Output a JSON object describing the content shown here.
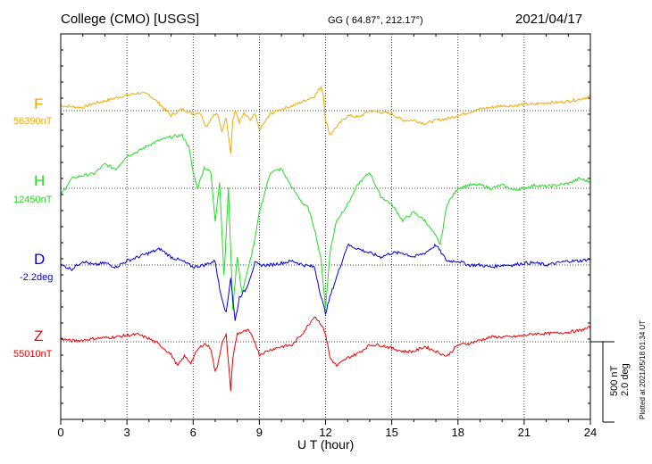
{
  "header": {
    "station": "College (CMO)  [USGS]",
    "coords": "GG ( 64.87°, 212.17°)",
    "date": "2021/04/17"
  },
  "footer": {
    "plotted": "Plotted at 2021/05/18 01:34  UT"
  },
  "colors": {
    "F": "#f5a800",
    "H": "#22dd22",
    "D": "#0000dd",
    "Z": "#ee0000",
    "grid": "#000000"
  },
  "chart_data": {
    "type": "line",
    "xlabel": "U T (hour)",
    "xlim": [
      0,
      24
    ],
    "xticks": [
      "0",
      "3",
      "6",
      "9",
      "12",
      "15",
      "18",
      "21",
      "24"
    ],
    "scale": {
      "nt_label": "500 nT",
      "deg_label": "2.0 deg",
      "nT_per_bar": 500,
      "deg_per_bar": 2.0
    },
    "series": [
      {
        "name": "F",
        "baseline_label": "56390nT",
        "unit": "nT",
        "x": [
          0,
          0.5,
          1,
          1.5,
          2,
          2.5,
          3,
          3.5,
          4,
          4.5,
          5,
          5.5,
          6,
          6.3,
          6.6,
          6.9,
          7.1,
          7.3,
          7.5,
          7.7,
          7.8,
          7.9,
          8.1,
          8.3,
          8.6,
          8.8,
          9,
          9.5,
          10,
          10.5,
          11,
          11.5,
          11.8,
          11.9,
          12,
          12.2,
          12.5,
          13,
          13.5,
          14,
          14.5,
          15,
          15.5,
          16,
          16.5,
          17,
          17.5,
          18,
          18.5,
          19,
          19.5,
          20,
          20.5,
          21,
          21.5,
          22,
          22.5,
          23,
          23.5,
          24
        ],
        "values": [
          30,
          25,
          20,
          45,
          60,
          80,
          95,
          110,
          100,
          40,
          -30,
          10,
          -20,
          -10,
          -100,
          -30,
          -20,
          -130,
          -40,
          -260,
          -60,
          0,
          -70,
          -20,
          -60,
          -20,
          -120,
          -20,
          10,
          30,
          60,
          90,
          150,
          100,
          -60,
          -150,
          -100,
          -30,
          -40,
          0,
          -10,
          -20,
          -60,
          -60,
          -80,
          -60,
          -50,
          -30,
          -10,
          10,
          20,
          30,
          30,
          40,
          40,
          50,
          50,
          60,
          70,
          90
        ]
      },
      {
        "name": "H",
        "baseline_label": "12450nT",
        "unit": "nT",
        "x": [
          0,
          0.5,
          1,
          1.5,
          2,
          2.5,
          3,
          3.5,
          4,
          4.5,
          5,
          5.5,
          5.8,
          6,
          6.2,
          6.5,
          6.8,
          7,
          7.2,
          7.4,
          7.6,
          7.8,
          8,
          8.2,
          8.5,
          8.8,
          9,
          9.5,
          10,
          10.5,
          11,
          11.2,
          11.5,
          11.8,
          12,
          12.2,
          12.5,
          13,
          13.5,
          14,
          14.5,
          15,
          15.5,
          16,
          16.5,
          17,
          17.2,
          17.5,
          18,
          18.5,
          19,
          19.5,
          20,
          20.5,
          21,
          21.5,
          22,
          22.5,
          23,
          23.5,
          24
        ],
        "values": [
          -40,
          60,
          80,
          90,
          150,
          120,
          200,
          230,
          270,
          300,
          320,
          330,
          260,
          100,
          0,
          130,
          100,
          -200,
          40,
          -550,
          0,
          -750,
          -420,
          -650,
          -500,
          -320,
          -150,
          100,
          120,
          0,
          -100,
          -120,
          -250,
          -450,
          -750,
          -400,
          -200,
          -100,
          30,
          100,
          -50,
          -100,
          -200,
          -150,
          -200,
          -300,
          -350,
          -100,
          0,
          20,
          20,
          0,
          20,
          -10,
          0,
          20,
          10,
          20,
          30,
          60,
          40
        ]
      },
      {
        "name": "D",
        "baseline_label": "-2.2deg",
        "unit": "deg",
        "x": [
          0,
          0.5,
          1,
          1.5,
          2,
          2.5,
          3,
          3.5,
          4,
          4.5,
          5,
          5.5,
          6,
          6.5,
          7,
          7.2,
          7.5,
          7.7,
          7.9,
          8.1,
          8.4,
          8.8,
          9,
          9.5,
          10,
          10.5,
          11,
          11.5,
          11.8,
          12,
          12.2,
          12.5,
          13,
          13.5,
          14,
          14.5,
          15,
          15.5,
          16,
          16.5,
          17,
          17.5,
          18,
          18.5,
          19,
          19.5,
          20,
          20.5,
          21,
          21.5,
          22,
          22.5,
          23,
          23.5,
          24
        ],
        "values": [
          0,
          -0.1,
          0.1,
          0,
          0.05,
          -0.05,
          0.1,
          0.2,
          0.3,
          0.4,
          0.2,
          0.1,
          -0.05,
          0,
          0.1,
          -0.6,
          -1.2,
          -0.3,
          -1.4,
          -0.8,
          -0.6,
          0.05,
          0,
          0,
          0.05,
          0.1,
          0,
          -0.05,
          -0.8,
          -1.2,
          -0.8,
          -0.3,
          0.5,
          0.4,
          0.3,
          0.2,
          0.3,
          0.3,
          0.2,
          0.3,
          0.5,
          0.1,
          0.1,
          0,
          0,
          -0.05,
          0,
          0,
          0.05,
          0.05,
          0,
          0.05,
          0.1,
          0.1,
          0.15
        ]
      },
      {
        "name": "Z",
        "baseline_label": "55010nT",
        "unit": "nT",
        "x": [
          0,
          0.5,
          1,
          1.5,
          2,
          2.5,
          3,
          3.5,
          4,
          4.5,
          5,
          5.3,
          5.6,
          5.9,
          6.2,
          6.5,
          6.8,
          7,
          7.1,
          7.3,
          7.5,
          7.7,
          7.8,
          8,
          8.2,
          8.5,
          8.8,
          9,
          9.5,
          10,
          10.5,
          11,
          11.5,
          11.8,
          12,
          12.2,
          12.5,
          13,
          13.5,
          14,
          14.5,
          15,
          15.5,
          16,
          16.5,
          17,
          17.5,
          18,
          18.5,
          19,
          19.5,
          20,
          20.5,
          21,
          21.5,
          22,
          22.5,
          23,
          23.5,
          24
        ],
        "values": [
          20,
          5,
          10,
          20,
          25,
          30,
          40,
          45,
          20,
          -20,
          -80,
          -150,
          -90,
          -130,
          -50,
          -10,
          -40,
          -190,
          -150,
          -10,
          40,
          -300,
          -100,
          50,
          60,
          70,
          0,
          -80,
          -50,
          -30,
          -20,
          60,
          160,
          110,
          50,
          -100,
          -150,
          -100,
          -70,
          -20,
          -20,
          -40,
          -60,
          -60,
          -30,
          -60,
          -90,
          -20,
          -10,
          10,
          30,
          30,
          30,
          40,
          50,
          50,
          55,
          60,
          70,
          90
        ]
      }
    ]
  }
}
